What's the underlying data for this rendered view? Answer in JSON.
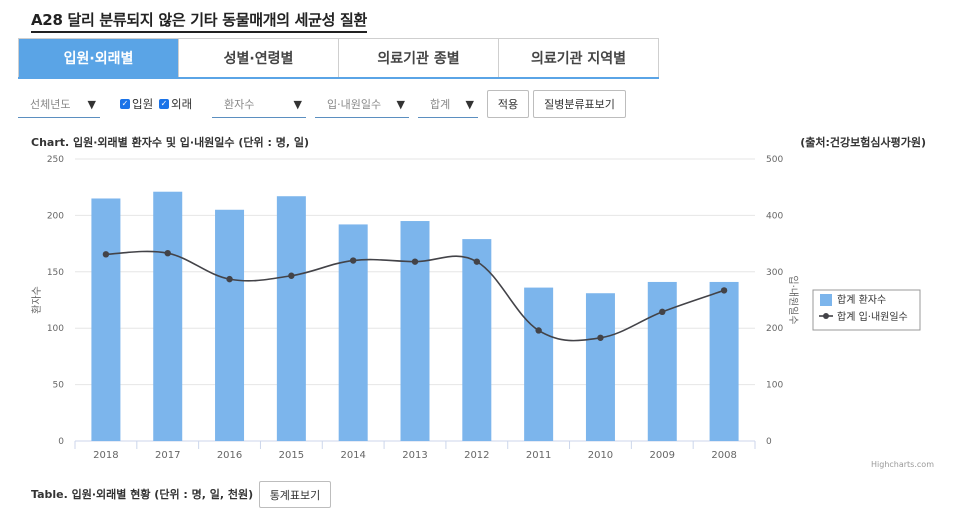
{
  "page_title": "A28 달리 분류되지 않은 기타 동물매개의 세균성 질환",
  "tabs": [
    {
      "label": "입원·외래별",
      "active": true
    },
    {
      "label": "성별·연령별",
      "active": false
    },
    {
      "label": "의료기관 종별",
      "active": false
    },
    {
      "label": "의료기관 지역별",
      "active": false
    }
  ],
  "filters": {
    "year_select": "선체년도",
    "inpatient_label": "입원",
    "outpatient_label": "외래",
    "metric_select": "환자수",
    "days_select": "입·내원일수",
    "sum_select": "합계",
    "apply_button": "적용",
    "disease_button": "질병분류표보기"
  },
  "chart_title": "Chart. 입원·외래별 환자수 및 입·내원일수 (단위 : 명, 일)",
  "chart_source": "(출처:건강보험심사평가원)",
  "credit": "Highcharts.com",
  "table_title": "Table. 입원·외래별 현황 (단위 : 명, 일, 천원)",
  "stats_button": "통계표보기",
  "colors": {
    "bar": "#7cb5ec",
    "line": "#434348",
    "accent": "#5aa4e6"
  },
  "chart_data": {
    "type": "bar",
    "categories": [
      "2018",
      "2017",
      "2016",
      "2015",
      "2014",
      "2013",
      "2012",
      "2011",
      "2010",
      "2009",
      "2008"
    ],
    "series": [
      {
        "name": "합계 환자수",
        "type": "bar",
        "axis": "left",
        "values": [
          215,
          221,
          205,
          217,
          192,
          195,
          179,
          136,
          131,
          141,
          141
        ]
      },
      {
        "name": "합계 입·내원일수",
        "type": "line",
        "axis": "right",
        "values": [
          331,
          333,
          287,
          293,
          320,
          318,
          318,
          196,
          183,
          229,
          267
        ]
      }
    ],
    "ylabel": "환자수",
    "y2label": "입·내원일수",
    "ylim": [
      0,
      250
    ],
    "y2lim": [
      0,
      500
    ],
    "yticks": [
      "0",
      "50",
      "100",
      "150",
      "200",
      "250"
    ],
    "y2ticks": [
      "0",
      "100",
      "200",
      "300",
      "400",
      "500"
    ],
    "legend_position": "right",
    "grid": true
  }
}
